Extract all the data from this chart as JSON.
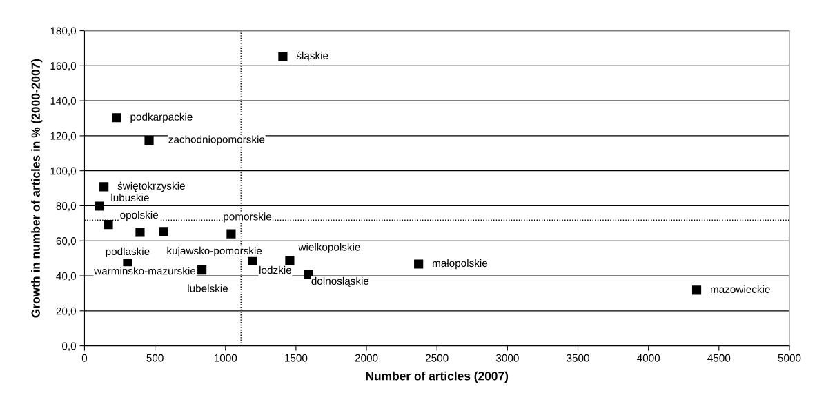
{
  "chart_data": {
    "type": "scatter",
    "xlabel": "Number of articles (2007)",
    "ylabel": "Growth in number of articles in % (2000-2007)",
    "x": [
      1407,
      228,
      458,
      138,
      104,
      169,
      394,
      562,
      1040,
      306,
      833,
      1190,
      1456,
      1587,
      2370,
      4342
    ],
    "series": [
      {
        "color": "#000000",
        "values": [
          165.3,
          130.3,
          117.4,
          90.9,
          79.8,
          69.3,
          64.9,
          65.3,
          64.0,
          47.2,
          43.3,
          48.8,
          48.8,
          40.9,
          46.7,
          31.8
        ]
      }
    ],
    "annotations": [
      {
        "text": "śląskie",
        "x": 1407,
        "y": 165.3
      },
      {
        "text": "podkarpackie",
        "x": 228,
        "y": 130.3
      },
      {
        "text": "zachodniopomorskie",
        "x": 458,
        "y": 117.4
      },
      {
        "text": "świętokrzyskie",
        "x": 138,
        "y": 90.9
      },
      {
        "text": "lubuskie",
        "x": 104,
        "y": 79.8
      },
      {
        "text": "opolskie",
        "x": 169,
        "y": 69.3
      },
      {
        "text": "podlaskie",
        "x": 394,
        "y": 64.9
      },
      {
        "text": "kujawsko-pomorskie",
        "x": 562,
        "y": 65.3
      },
      {
        "text": "pomorskie",
        "x": 1040,
        "y": 64.0
      },
      {
        "text": "warminsko-mazurskie",
        "x": 306,
        "y": 47.2
      },
      {
        "text": "lubelskie",
        "x": 833,
        "y": 43.3
      },
      {
        "text": "łodzkie",
        "x": 1190,
        "y": 48.8
      },
      {
        "text": "wielkopolskie",
        "x": 1456,
        "y": 48.8
      },
      {
        "text": "dolnosląskie",
        "x": 1587,
        "y": 40.9
      },
      {
        "text": "małopolskie",
        "x": 2370,
        "y": 46.7
      },
      {
        "text": "mazowieckie",
        "x": 4342,
        "y": 31.8
      }
    ],
    "ref_lines": [
      {
        "axis": "x",
        "value": 1110,
        "line_style": "dotted",
        "color": "#000000"
      },
      {
        "axis": "y",
        "value": 71.8,
        "line_style": "dotted",
        "color": "#000000"
      }
    ],
    "xlim": [
      0,
      5000
    ],
    "xticks": [
      0,
      500,
      1000,
      1500,
      2000,
      2500,
      3000,
      3500,
      4000,
      4500,
      5000
    ],
    "ylim": [
      0,
      180
    ],
    "yticks": [
      {
        "value": 0,
        "label": "0,0"
      },
      {
        "value": 20,
        "label": "20,0"
      },
      {
        "value": 40,
        "label": "40,0"
      },
      {
        "value": 60,
        "label": "60,0"
      },
      {
        "value": 80,
        "label": "80,0"
      },
      {
        "value": 100,
        "label": "100,0"
      },
      {
        "value": 120,
        "label": "120,0"
      },
      {
        "value": 140,
        "label": "140,0"
      },
      {
        "value": 160,
        "label": "160,0"
      },
      {
        "value": 180,
        "label": "180,0"
      }
    ],
    "grid": "y",
    "marker": "square"
  }
}
